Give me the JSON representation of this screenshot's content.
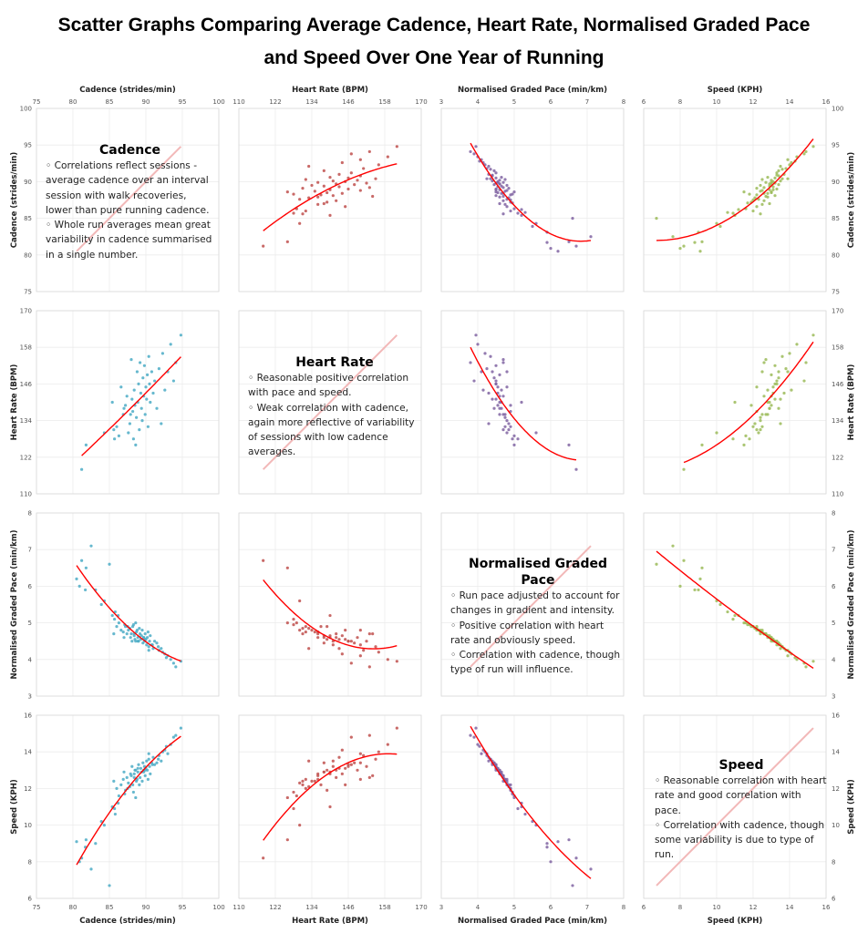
{
  "title": {
    "line1": "Scatter Graphs Comparing Average Cadence, Heart Rate, Normalised Graded Pace",
    "line2": "and Speed Over One Year of Running"
  },
  "chart_data": {
    "type": "scatter",
    "layout": "scatter matrix 4x4, diagonal panels hold notes",
    "trendline": "polynomial (order 2), red",
    "grid": true,
    "variables": [
      {
        "key": "cadence",
        "label": "Cadence (strides/min)",
        "range": [
          75,
          100
        ],
        "ticks": [
          75,
          80,
          85,
          90,
          95,
          100
        ],
        "color": "#4bacc6"
      },
      {
        "key": "hr",
        "label": "Heart Rate (BPM)",
        "range": [
          110,
          170
        ],
        "ticks": [
          110,
          122,
          134,
          146,
          158,
          170
        ],
        "color": "#c0504d"
      },
      {
        "key": "pace",
        "label": "Normalised Graded Pace (min/km)",
        "range": [
          3,
          8
        ],
        "ticks": [
          3,
          4,
          5,
          6,
          7,
          8
        ],
        "color": "#8064a2"
      },
      {
        "key": "speed",
        "label": "Speed (KPH)",
        "range": [
          6,
          16
        ],
        "ticks": [
          6,
          8,
          10,
          12,
          14,
          16
        ],
        "color": "#9bbb59"
      }
    ],
    "trend_color": "#ff0000",
    "diagonal_color": "#f2b8b8",
    "columns": [
      "cadence",
      "hr",
      "pace",
      "speed"
    ],
    "runs": [
      [
        80.5,
        null,
        6.2,
        9.1
      ],
      [
        80.9,
        null,
        6.0,
        8.0
      ],
      [
        81.2,
        118,
        6.7,
        8.2
      ],
      [
        81.7,
        null,
        5.9,
        8.8
      ],
      [
        81.8,
        126,
        6.5,
        9.2
      ],
      [
        82.5,
        null,
        7.1,
        7.6
      ],
      [
        83.1,
        null,
        5.9,
        9.0
      ],
      [
        84.3,
        130,
        5.6,
        10.0
      ],
      [
        85.0,
        null,
        6.6,
        6.7
      ],
      [
        85.4,
        140,
        5.2,
        11.0
      ],
      [
        85.6,
        131,
        4.7,
        12.4
      ],
      [
        85.7,
        128,
        5.1,
        10.9
      ],
      [
        86.0,
        132,
        4.9,
        12.0
      ],
      [
        86.3,
        129,
        5.0,
        11.6
      ],
      [
        86.6,
        145,
        4.8,
        12.2
      ],
      [
        86.9,
        136,
        4.75,
        12.5
      ],
      [
        87.0,
        138,
        4.6,
        12.9
      ],
      [
        87.2,
        139,
        4.9,
        11.9
      ],
      [
        87.4,
        142,
        4.7,
        12.6
      ],
      [
        87.6,
        130,
        4.8,
        12.3
      ],
      [
        87.8,
        133,
        4.85,
        12.1
      ],
      [
        87.9,
        136,
        4.6,
        12.8
      ],
      [
        88.0,
        154,
        4.7,
        12.7
      ],
      [
        88.1,
        141,
        4.5,
        13.2
      ],
      [
        88.2,
        137,
        4.9,
        12.2
      ],
      [
        88.3,
        128,
        4.95,
        11.8
      ],
      [
        88.4,
        144,
        4.65,
        12.8
      ],
      [
        88.5,
        139,
        4.55,
        13.0
      ],
      [
        88.6,
        126,
        5.0,
        11.5
      ],
      [
        88.7,
        135,
        4.75,
        12.4
      ],
      [
        88.8,
        150,
        4.8,
        12.5
      ],
      [
        88.9,
        140,
        4.6,
        12.9
      ],
      [
        89.0,
        146,
        4.5,
        13.3
      ],
      [
        89.1,
        131,
        4.85,
        12.2
      ],
      [
        89.2,
        153,
        4.7,
        12.6
      ],
      [
        89.3,
        143,
        4.55,
        13.1
      ],
      [
        89.4,
        138,
        4.65,
        12.9
      ],
      [
        89.5,
        134,
        4.8,
        12.4
      ],
      [
        89.6,
        148,
        4.45,
        13.4
      ],
      [
        89.7,
        142,
        4.6,
        13.0
      ],
      [
        89.8,
        152,
        4.5,
        13.2
      ],
      [
        89.9,
        136,
        4.7,
        12.7
      ],
      [
        90.0,
        145,
        4.55,
        13.1
      ],
      [
        90.1,
        141,
        4.4,
        13.5
      ],
      [
        90.2,
        149,
        4.6,
        13.0
      ],
      [
        90.3,
        132,
        4.75,
        12.5
      ],
      [
        90.4,
        155,
        4.35,
        13.6
      ],
      [
        90.5,
        146,
        4.5,
        13.2
      ],
      [
        90.6,
        140,
        4.65,
        12.8
      ],
      [
        90.8,
        150,
        4.4,
        13.4
      ],
      [
        91.0,
        143,
        4.3,
        13.7
      ],
      [
        91.2,
        147,
        4.5,
        13.3
      ],
      [
        91.5,
        138,
        4.45,
        13.4
      ],
      [
        91.8,
        151,
        4.25,
        13.8
      ],
      [
        92.1,
        133,
        4.3,
        13.5
      ],
      [
        92.3,
        156,
        4.2,
        14.0
      ],
      [
        92.6,
        144,
        4.15,
        14.1
      ],
      [
        93.0,
        150,
        4.1,
        13.9
      ],
      [
        93.4,
        159,
        4.0,
        14.4
      ],
      [
        93.8,
        147,
        3.9,
        14.8
      ],
      [
        94.1,
        153,
        3.8,
        14.9
      ],
      [
        94.8,
        162,
        3.95,
        15.3
      ],
      [
        87.5,
        null,
        4.9,
        12.0
      ],
      [
        88.9,
        null,
        4.5,
        13.1
      ],
      [
        89.7,
        null,
        4.6,
        12.9
      ],
      [
        90.9,
        null,
        4.4,
        13.3
      ],
      [
        86.2,
        null,
        5.2,
        11.2
      ],
      [
        91.7,
        null,
        4.35,
        13.6
      ],
      [
        88.4,
        null,
        4.7,
        12.6
      ],
      [
        89.9,
        null,
        4.55,
        13.0
      ],
      [
        83.9,
        null,
        5.5,
        10.2
      ],
      [
        85.8,
        null,
        5.3,
        10.6
      ],
      [
        92.8,
        null,
        4.05,
        14.3
      ],
      [
        90.4,
        null,
        4.25,
        13.9
      ],
      [
        87.1,
        null,
        4.95,
        11.7
      ],
      [
        88.6,
        null,
        4.5,
        13.0
      ]
    ]
  },
  "notes": [
    {
      "title": "Cadence",
      "points": [
        "◦  Correlations reflect sessions - average cadence over an interval session with walk recoveries, lower than pure running cadence.",
        "◦  Whole run averages mean great variability in cadence summarised in a single number."
      ]
    },
    {
      "title": "Heart Rate",
      "points": [
        "◦  Reasonable positive correlation with pace and speed.",
        "◦  Weak correlation with cadence, again more reflective of variability of sessions with low cadence averages."
      ]
    },
    {
      "title": "Normalised Graded Pace",
      "points": [
        "◦  Run pace adjusted to account for changes in gradient and intensity.",
        "◦  Positive correlation with heart rate and obviously speed.",
        "◦  Correlation with cadence, though type of run will influence."
      ]
    },
    {
      "title": "Speed",
      "points": [
        "◦  Reasonable correlation with heart rate and good correlation with pace.",
        "◦  Correlation with cadence, though some variability is due to type of run."
      ]
    }
  ]
}
